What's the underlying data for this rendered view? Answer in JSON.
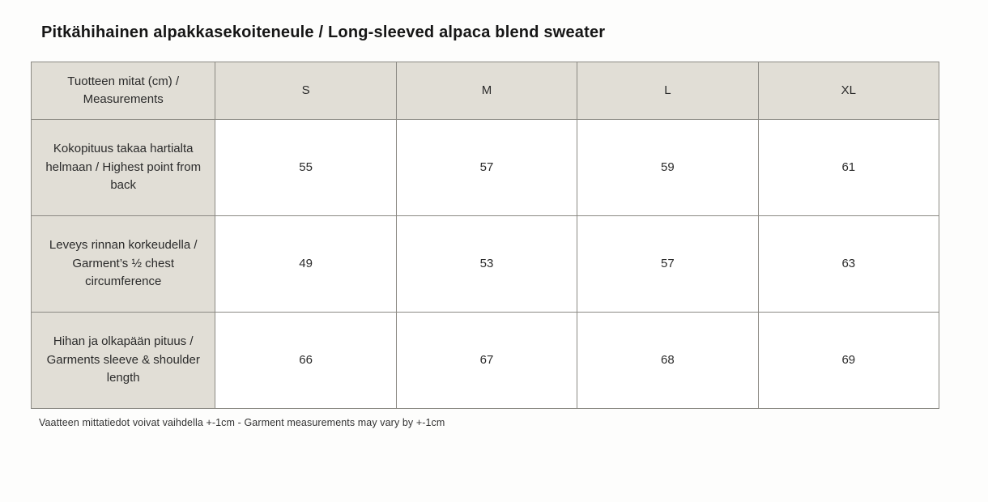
{
  "page": {
    "title": "Pitkähihainen alpakkasekoiteneule / Long-sleeved alpaca blend sweater",
    "footnote": "Vaatteen mittatiedot voivat vaihdella +-1cm - Garment measurements may vary by +-1cm"
  },
  "size_chart": {
    "header": {
      "label": "Tuotteen mitat (cm) / Measurements",
      "sizes": [
        "S",
        "M",
        "L",
        "XL"
      ]
    },
    "rows": [
      {
        "label": "Kokopituus takaa hartialta helmaan / Highest point from back",
        "values": [
          "55",
          "57",
          "59",
          "61"
        ]
      },
      {
        "label": "Leveys rinnan korkeudella / Garment’s ½ chest circumference",
        "values": [
          "49",
          "53",
          "57",
          "63"
        ]
      },
      {
        "label": "Hihan ja olkapään pituus / Garments sleeve & shoulder length",
        "values": [
          "66",
          "67",
          "68",
          "69"
        ]
      }
    ],
    "colors": {
      "header_bg": "#e1ded6",
      "cell_bg": "#ffffff",
      "border": "#8b8983",
      "text": "#2b2b2b"
    }
  }
}
